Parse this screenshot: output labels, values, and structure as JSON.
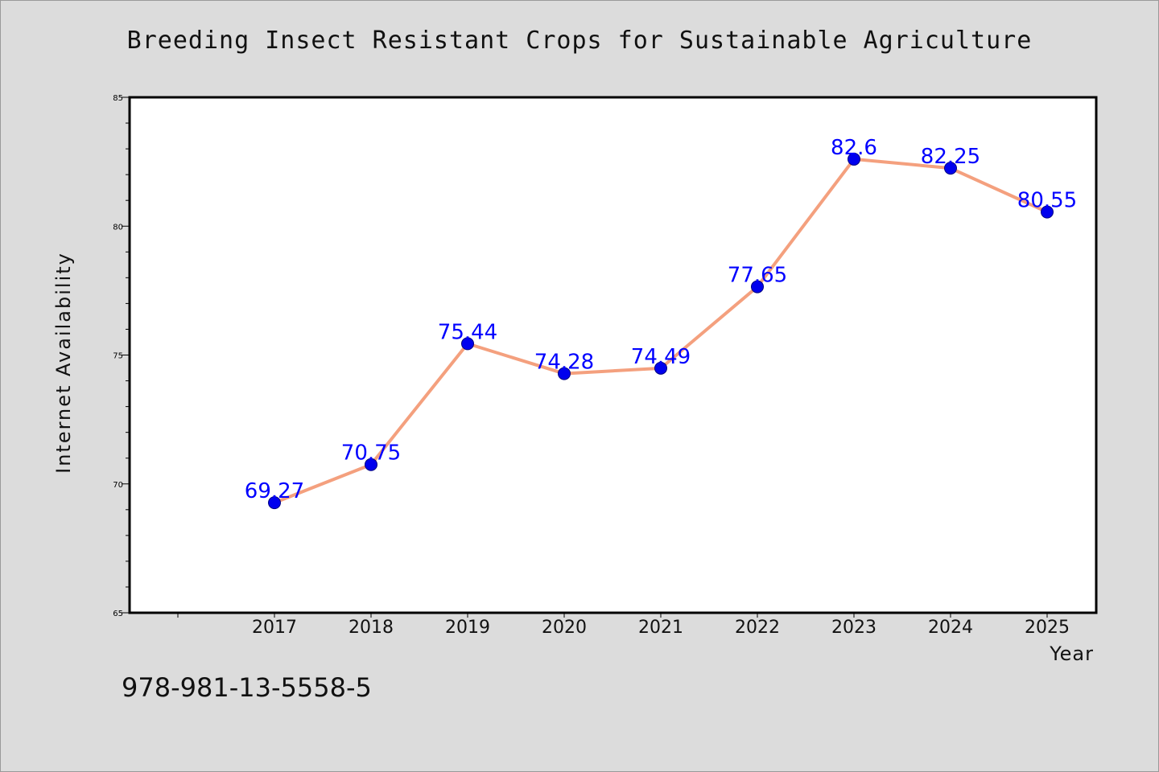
{
  "chart_data": {
    "type": "line",
    "title": "Breeding Insect Resistant Crops for Sustainable Agriculture",
    "xlabel": "Year",
    "ylabel": "Internet Availability",
    "categories": [
      "2017",
      "2018",
      "2019",
      "2020",
      "2021",
      "2022",
      "2023",
      "2024",
      "2025"
    ],
    "values": [
      69.27,
      70.75,
      75.44,
      74.28,
      74.49,
      77.65,
      82.6,
      82.25,
      80.55
    ],
    "data_labels": [
      "69.27",
      "70.75",
      "75.44",
      "74.28",
      "74.49",
      "77.65",
      "82.6",
      "82.25",
      "80.55"
    ],
    "ylim": [
      65,
      85
    ],
    "y_ticks": [
      65,
      70,
      75,
      80,
      85
    ],
    "y_tick_labels": [
      "65",
      "70",
      "75",
      "80",
      "85"
    ],
    "grid": false,
    "colors": {
      "line": "#f4a07e",
      "marker": "#0000ee",
      "marker_edge": "#000080",
      "label": "#0000ff"
    }
  },
  "footer": {
    "isbn": "978-981-13-5558-5"
  }
}
